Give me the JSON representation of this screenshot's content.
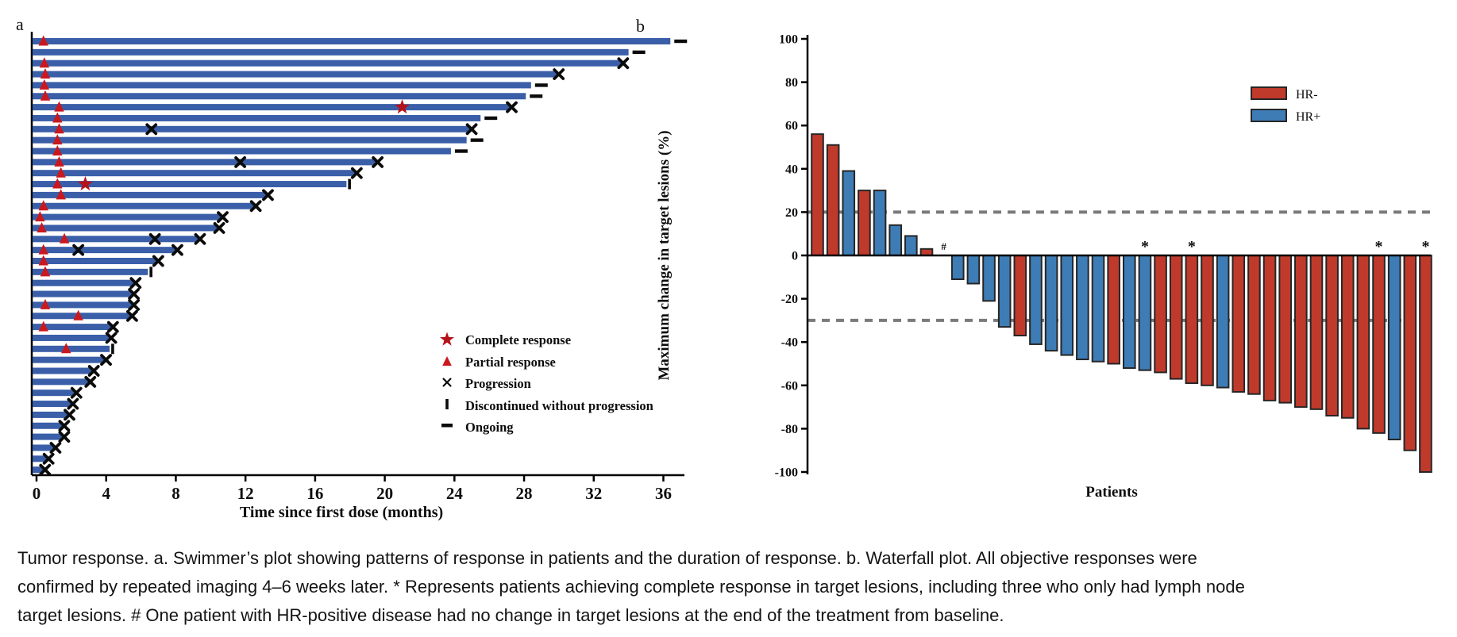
{
  "panels": {
    "a_label": "a",
    "b_label": "b"
  },
  "caption": "Tumor response. a. Swimmer’s plot showing patterns of response in patients and the duration of response. b. Waterfall plot. All objective responses were confirmed by repeated imaging 4–6 weeks later. * Represents patients achieving complete response in target lesions, including three who only had lymph node target lesions. # One patient with HR-positive disease had no change in target lesions at the end of the treatment from baseline.",
  "chart_data": [
    {
      "type": "swimmer",
      "xlabel": "Time since first dose (months)",
      "xticks": [
        0,
        4,
        8,
        12,
        16,
        20,
        24,
        28,
        32,
        36
      ],
      "xlim": [
        0,
        37.2
      ],
      "bar_color": "#3A5FA8",
      "marker_colors": {
        "complete_response": "#B5121A",
        "partial_response": "#C9181E",
        "progression": "#0D0D0D"
      },
      "legend": [
        {
          "symbol": "star-icon",
          "label": "Complete response"
        },
        {
          "symbol": "triangle-icon",
          "label": "Partial response"
        },
        {
          "symbol": "x-icon",
          "label": "Progression"
        },
        {
          "symbol": "vbar-icon",
          "label": "Discontinued without progression"
        },
        {
          "symbol": "dash-icon",
          "label": "Ongoing"
        }
      ],
      "patients": [
        {
          "duration": 36.4,
          "end": "ongoing",
          "pr": 0.4
        },
        {
          "duration": 34.0,
          "end": "ongoing"
        },
        {
          "duration": 33.6,
          "end": "progression",
          "pr": 0.45
        },
        {
          "duration": 29.9,
          "end": "progression",
          "pr": 0.5
        },
        {
          "duration": 28.4,
          "end": "ongoing",
          "pr": 0.45
        },
        {
          "duration": 28.1,
          "end": "ongoing",
          "pr": 0.5
        },
        {
          "duration": 27.2,
          "end": "progression",
          "pr": 1.3,
          "cr": 21.0
        },
        {
          "duration": 25.5,
          "end": "ongoing",
          "pr": 1.2
        },
        {
          "duration": 24.9,
          "end": "progression",
          "pr": 1.3,
          "progression_marks": [
            6.6
          ]
        },
        {
          "duration": 24.7,
          "end": "ongoing",
          "pr": 1.2
        },
        {
          "duration": 23.8,
          "end": "ongoing",
          "pr": 1.2
        },
        {
          "duration": 19.5,
          "end": "progression",
          "pr": 1.3,
          "progression_marks": [
            11.7
          ]
        },
        {
          "duration": 18.3,
          "end": "progression",
          "pr": 1.4
        },
        {
          "duration": 17.8,
          "end": "discontinued",
          "pr": 1.2,
          "cr": 2.8
        },
        {
          "duration": 13.2,
          "end": "progression",
          "pr": 1.4
        },
        {
          "duration": 12.5,
          "end": "progression",
          "pr": 0.4
        },
        {
          "duration": 10.6,
          "end": "progression",
          "pr": 0.2
        },
        {
          "duration": 10.4,
          "end": "progression",
          "pr": 0.3
        },
        {
          "duration": 9.3,
          "end": "progression",
          "pr": 1.6,
          "progression_marks": [
            6.8
          ]
        },
        {
          "duration": 8.0,
          "end": "progression",
          "pr": 0.4,
          "progression_marks": [
            2.4
          ]
        },
        {
          "duration": 6.9,
          "end": "progression",
          "pr": 0.4
        },
        {
          "duration": 6.4,
          "end": "discontinued",
          "pr": 0.5
        },
        {
          "duration": 5.6,
          "end": "progression"
        },
        {
          "duration": 5.5,
          "end": "progression"
        },
        {
          "duration": 5.5,
          "end": "progression",
          "pr": 0.5
        },
        {
          "duration": 5.4,
          "end": "progression",
          "pr": 2.4
        },
        {
          "duration": 4.3,
          "end": "progression",
          "pr": 0.4
        },
        {
          "duration": 4.2,
          "end": "progression"
        },
        {
          "duration": 4.2,
          "end": "discontinued",
          "pr": 1.7
        },
        {
          "duration": 3.9,
          "end": "progression"
        },
        {
          "duration": 3.2,
          "end": "progression"
        },
        {
          "duration": 3.0,
          "end": "progression"
        },
        {
          "duration": 2.2,
          "end": "progression"
        },
        {
          "duration": 2.0,
          "end": "progression"
        },
        {
          "duration": 1.8,
          "end": "progression"
        },
        {
          "duration": 1.5,
          "end": "progression"
        },
        {
          "duration": 1.5,
          "end": "progression"
        },
        {
          "duration": 1.0,
          "end": "progression"
        },
        {
          "duration": 0.6,
          "end": "progression"
        },
        {
          "duration": 0.4,
          "end": "progression"
        }
      ]
    },
    {
      "type": "bar",
      "subtype": "waterfall",
      "ylabel": "Maximum change in target lesions (%)",
      "xlabel": "Patients",
      "yticks": [
        100,
        80,
        60,
        40,
        20,
        0,
        -20,
        -40,
        -60,
        -80,
        -100
      ],
      "ylim": [
        -100,
        100
      ],
      "reference_lines": [
        20,
        -30
      ],
      "legend": [
        {
          "label": "HR-",
          "color": "#C03A2C"
        },
        {
          "label": "HR+",
          "color": "#3E7CB5"
        }
      ],
      "series": [
        {
          "value": 56,
          "group": "HR-"
        },
        {
          "value": 51,
          "group": "HR-"
        },
        {
          "value": 39,
          "group": "HR+"
        },
        {
          "value": 30,
          "group": "HR-"
        },
        {
          "value": 30,
          "group": "HR+"
        },
        {
          "value": 14,
          "group": "HR+"
        },
        {
          "value": 9,
          "group": "HR+"
        },
        {
          "value": 3,
          "group": "HR-"
        },
        {
          "value": 0,
          "group": "HR+",
          "mark": "#"
        },
        {
          "value": -11,
          "group": "HR+"
        },
        {
          "value": -13,
          "group": "HR+"
        },
        {
          "value": -21,
          "group": "HR+"
        },
        {
          "value": -33,
          "group": "HR+"
        },
        {
          "value": -37,
          "group": "HR-"
        },
        {
          "value": -41,
          "group": "HR+"
        },
        {
          "value": -44,
          "group": "HR+"
        },
        {
          "value": -46,
          "group": "HR+"
        },
        {
          "value": -48,
          "group": "HR+"
        },
        {
          "value": -49,
          "group": "HR+"
        },
        {
          "value": -50,
          "group": "HR-"
        },
        {
          "value": -52,
          "group": "HR+"
        },
        {
          "value": -53,
          "group": "HR+",
          "mark": "*"
        },
        {
          "value": -54,
          "group": "HR-"
        },
        {
          "value": -57,
          "group": "HR-"
        },
        {
          "value": -59,
          "group": "HR-",
          "mark": "*"
        },
        {
          "value": -60,
          "group": "HR-"
        },
        {
          "value": -61,
          "group": "HR+"
        },
        {
          "value": -63,
          "group": "HR-"
        },
        {
          "value": -64,
          "group": "HR-"
        },
        {
          "value": -67,
          "group": "HR-"
        },
        {
          "value": -68,
          "group": "HR-"
        },
        {
          "value": -70,
          "group": "HR-"
        },
        {
          "value": -71,
          "group": "HR-"
        },
        {
          "value": -74,
          "group": "HR-"
        },
        {
          "value": -75,
          "group": "HR-"
        },
        {
          "value": -80,
          "group": "HR-"
        },
        {
          "value": -82,
          "group": "HR-",
          "mark": "*"
        },
        {
          "value": -85,
          "group": "HR+"
        },
        {
          "value": -90,
          "group": "HR-"
        },
        {
          "value": -100,
          "group": "HR-",
          "mark": "*"
        }
      ]
    }
  ]
}
